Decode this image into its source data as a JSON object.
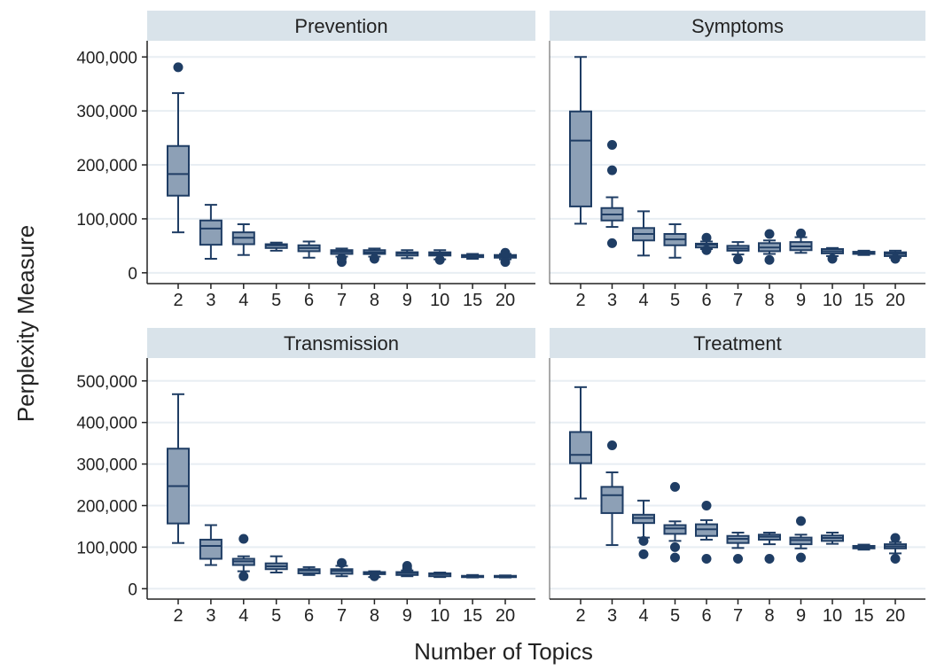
{
  "chart_data": {
    "type": "boxplot",
    "xlabel": "Number of Topics",
    "ylabel": "Perplexity Measure",
    "categories": [
      "2",
      "3",
      "4",
      "5",
      "6",
      "7",
      "8",
      "9",
      "10",
      "15",
      "20"
    ],
    "colors": {
      "box_fill": "#8da0b6",
      "box_stroke": "#1f3d64",
      "grid": "#e8eef3",
      "strip": "#d9e3ea",
      "outlier": "#1f3d64"
    },
    "panels": [
      {
        "title": "Prevention",
        "ylim": [
          -20000,
          430000
        ],
        "yticks": [
          0,
          100000,
          200000,
          300000,
          400000
        ],
        "ytick_labels": [
          "0",
          "100,000",
          "200,000",
          "300,000",
          "400,000"
        ],
        "boxes": [
          {
            "min": 75000,
            "q1": 143000,
            "median": 183000,
            "q3": 235000,
            "max": 333000,
            "outliers": [
              381000
            ]
          },
          {
            "min": 26000,
            "q1": 52000,
            "median": 82000,
            "q3": 97000,
            "max": 126000,
            "outliers": []
          },
          {
            "min": 33000,
            "q1": 53000,
            "median": 65000,
            "q3": 75000,
            "max": 90000,
            "outliers": []
          },
          {
            "min": 41000,
            "q1": 46000,
            "median": 51000,
            "q3": 53000,
            "max": 56000,
            "outliers": []
          },
          {
            "min": 28000,
            "q1": 40000,
            "median": 46000,
            "q3": 51000,
            "max": 58000,
            "outliers": []
          },
          {
            "min": 30000,
            "q1": 35000,
            "median": 39000,
            "q3": 42000,
            "max": 45000,
            "outliers": [
              20000,
              27000
            ]
          },
          {
            "min": 30000,
            "q1": 35000,
            "median": 38000,
            "q3": 42000,
            "max": 45000,
            "outliers": [
              26000
            ]
          },
          {
            "min": 27000,
            "q1": 32000,
            "median": 36000,
            "q3": 38000,
            "max": 42000,
            "outliers": []
          },
          {
            "min": 25000,
            "q1": 32000,
            "median": 35000,
            "q3": 38000,
            "max": 42000,
            "outliers": [
              24000
            ]
          },
          {
            "min": 26000,
            "q1": 29000,
            "median": 31000,
            "q3": 33000,
            "max": 35000,
            "outliers": []
          },
          {
            "min": 25000,
            "q1": 28000,
            "median": 31000,
            "q3": 33000,
            "max": 35000,
            "outliers": [
              20000,
              37000
            ]
          }
        ]
      },
      {
        "title": "Symptoms",
        "ylim": [
          -20000,
          430000
        ],
        "yticks": [
          0,
          100000,
          200000,
          300000,
          400000
        ],
        "ytick_labels": [],
        "boxes": [
          {
            "min": 91000,
            "q1": 123000,
            "median": 245000,
            "q3": 299000,
            "max": 400000,
            "outliers": []
          },
          {
            "min": 85000,
            "q1": 97000,
            "median": 108000,
            "q3": 120000,
            "max": 140000,
            "outliers": [
              55000,
              190000,
              237000
            ]
          },
          {
            "min": 32000,
            "q1": 60000,
            "median": 72000,
            "q3": 83000,
            "max": 114000,
            "outliers": []
          },
          {
            "min": 28000,
            "q1": 51000,
            "median": 62000,
            "q3": 72000,
            "max": 90000,
            "outliers": []
          },
          {
            "min": 44000,
            "q1": 47000,
            "median": 52000,
            "q3": 54000,
            "max": 58000,
            "outliers": [
              42000,
              65000
            ]
          },
          {
            "min": 34000,
            "q1": 41000,
            "median": 45000,
            "q3": 50000,
            "max": 57000,
            "outliers": [
              25000
            ]
          },
          {
            "min": 35000,
            "q1": 40000,
            "median": 47000,
            "q3": 55000,
            "max": 60000,
            "outliers": [
              24000,
              72000
            ]
          },
          {
            "min": 37000,
            "q1": 42000,
            "median": 49000,
            "q3": 57000,
            "max": 66000,
            "outliers": [
              73000
            ]
          },
          {
            "min": 31000,
            "q1": 36000,
            "median": 40000,
            "q3": 44000,
            "max": 46000,
            "outliers": [
              26000
            ]
          },
          {
            "min": 33000,
            "q1": 35000,
            "median": 37000,
            "q3": 39000,
            "max": 41000,
            "outliers": []
          },
          {
            "min": 28000,
            "q1": 31000,
            "median": 35000,
            "q3": 38000,
            "max": 41000,
            "outliers": [
              26000
            ]
          }
        ]
      },
      {
        "title": "Transmission",
        "ylim": [
          -25000,
          555000
        ],
        "yticks": [
          0,
          100000,
          200000,
          300000,
          400000,
          500000
        ],
        "ytick_labels": [
          "0",
          "100,000",
          "200,000",
          "300,000",
          "400,000",
          "500,000"
        ],
        "boxes": [
          {
            "min": 110000,
            "q1": 157000,
            "median": 247000,
            "q3": 337000,
            "max": 468000,
            "outliers": []
          },
          {
            "min": 57000,
            "q1": 72000,
            "median": 103000,
            "q3": 118000,
            "max": 153000,
            "outliers": []
          },
          {
            "min": 42000,
            "q1": 57000,
            "median": 66000,
            "q3": 72000,
            "max": 78000,
            "outliers": [
              30000,
              120000
            ]
          },
          {
            "min": 39000,
            "q1": 47000,
            "median": 54000,
            "q3": 61000,
            "max": 78000,
            "outliers": []
          },
          {
            "min": 33000,
            "q1": 37000,
            "median": 44000,
            "q3": 47000,
            "max": 52000,
            "outliers": []
          },
          {
            "min": 30000,
            "q1": 36000,
            "median": 43000,
            "q3": 47000,
            "max": 55000,
            "outliers": [
              62000
            ]
          },
          {
            "min": 28000,
            "q1": 35000,
            "median": 38000,
            "q3": 40000,
            "max": 42000,
            "outliers": [
              30000
            ]
          },
          {
            "min": 30000,
            "q1": 33000,
            "median": 38000,
            "q3": 40000,
            "max": 44000,
            "outliers": [
              48000,
              55000
            ]
          },
          {
            "min": 28000,
            "q1": 30000,
            "median": 35000,
            "q3": 37000,
            "max": 39000,
            "outliers": []
          },
          {
            "min": 27000,
            "q1": 29000,
            "median": 30000,
            "q3": 31000,
            "max": 33000,
            "outliers": []
          },
          {
            "min": 27000,
            "q1": 28000,
            "median": 30000,
            "q3": 31000,
            "max": 32000,
            "outliers": []
          }
        ]
      },
      {
        "title": "Treatment",
        "ylim": [
          -25000,
          555000
        ],
        "yticks": [
          0,
          100000,
          200000,
          300000,
          400000,
          500000
        ],
        "ytick_labels": [],
        "boxes": [
          {
            "min": 217000,
            "q1": 302000,
            "median": 322000,
            "q3": 377000,
            "max": 485000,
            "outliers": []
          },
          {
            "min": 105000,
            "q1": 182000,
            "median": 225000,
            "q3": 245000,
            "max": 280000,
            "outliers": [
              345000
            ]
          },
          {
            "min": 123000,
            "q1": 158000,
            "median": 170000,
            "q3": 178000,
            "max": 212000,
            "outliers": [
              83000,
              115000
            ]
          },
          {
            "min": 115000,
            "q1": 132000,
            "median": 145000,
            "q3": 153000,
            "max": 162000,
            "outliers": [
              75000,
              100000,
              245000
            ]
          },
          {
            "min": 118000,
            "q1": 127000,
            "median": 143000,
            "q3": 155000,
            "max": 165000,
            "outliers": [
              72000,
              200000
            ]
          },
          {
            "min": 98000,
            "q1": 110000,
            "median": 120000,
            "q3": 127000,
            "max": 135000,
            "outliers": [
              72000
            ]
          },
          {
            "min": 107000,
            "q1": 118000,
            "median": 125000,
            "q3": 130000,
            "max": 135000,
            "outliers": [
              72000
            ]
          },
          {
            "min": 97000,
            "q1": 107000,
            "median": 117000,
            "q3": 123000,
            "max": 130000,
            "outliers": [
              75000,
              163000
            ]
          },
          {
            "min": 108000,
            "q1": 115000,
            "median": 122000,
            "q3": 128000,
            "max": 135000,
            "outliers": []
          },
          {
            "min": 94000,
            "q1": 97000,
            "median": 100000,
            "q3": 103000,
            "max": 106000,
            "outliers": []
          },
          {
            "min": 85000,
            "q1": 97000,
            "median": 102000,
            "q3": 107000,
            "max": 112000,
            "outliers": [
              72000,
              122000
            ]
          }
        ]
      }
    ]
  }
}
